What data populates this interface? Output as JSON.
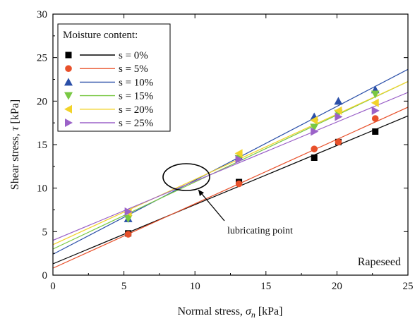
{
  "chart_data": {
    "type": "scatter",
    "xlabel_main": "Normal stress, ",
    "xlabel_symbol": "σ",
    "xlabel_sub": "n",
    "xlabel_unit": " [kPa]",
    "ylabel_main": "Shear stress, ",
    "ylabel_symbol": "τ",
    "ylabel_unit": " [kPa]",
    "xlim": [
      0,
      25
    ],
    "ylim": [
      0,
      30
    ],
    "x_ticks": [
      0,
      5,
      10,
      15,
      20,
      25
    ],
    "y_ticks": [
      0,
      5,
      10,
      15,
      20,
      25,
      30
    ],
    "x_tick_labels": [
      "0",
      "5",
      "10",
      "15",
      "20",
      "25"
    ],
    "y_tick_labels": [
      "0",
      "5",
      "10",
      "15",
      "20",
      "25",
      "30"
    ],
    "legend_title": "Moisture content:",
    "legend_position": "top-left",
    "annotation": "lubricating point",
    "corner_label": "Rapeseed",
    "x_points": [
      5.3,
      13.1,
      18.4,
      20.1,
      22.7
    ],
    "series": [
      {
        "name": "s = 0%",
        "marker": "square",
        "color": "#000000",
        "line_color": "#000000",
        "intercept": 1.3,
        "slope": 0.68,
        "values": [
          4.8,
          10.7,
          13.5,
          15.3,
          16.5
        ]
      },
      {
        "name": "s = 5%",
        "marker": "circle",
        "color": "#e8502a",
        "line_color": "#e8502a",
        "intercept": 0.8,
        "slope": 0.74,
        "values": [
          4.7,
          10.5,
          14.5,
          15.3,
          18.0
        ]
      },
      {
        "name": "s = 10%",
        "marker": "triangle-up",
        "color": "#2a4fa8",
        "line_color": "#2a4fa8",
        "intercept": 2.4,
        "slope": 0.85,
        "values": [
          6.5,
          13.6,
          18.2,
          20.0,
          21.3
        ]
      },
      {
        "name": "s = 15%",
        "marker": "triangle-down",
        "color": "#79c843",
        "line_color": "#79c843",
        "intercept": 3.0,
        "slope": 0.77,
        "values": [
          6.5,
          13.4,
          17.0,
          18.6,
          20.8
        ]
      },
      {
        "name": "s = 20%",
        "marker": "triangle-left",
        "color": "#f2d32a",
        "line_color": "#f2d32a",
        "intercept": 3.5,
        "slope": 0.75,
        "values": [
          7.2,
          14.0,
          17.8,
          18.9,
          19.8
        ]
      },
      {
        "name": "s = 25%",
        "marker": "triangle-right",
        "color": "#9b62c8",
        "line_color": "#9b62c8",
        "intercept": 4.0,
        "slope": 0.68,
        "values": [
          7.3,
          13.3,
          16.5,
          18.2,
          18.9
        ]
      }
    ]
  }
}
